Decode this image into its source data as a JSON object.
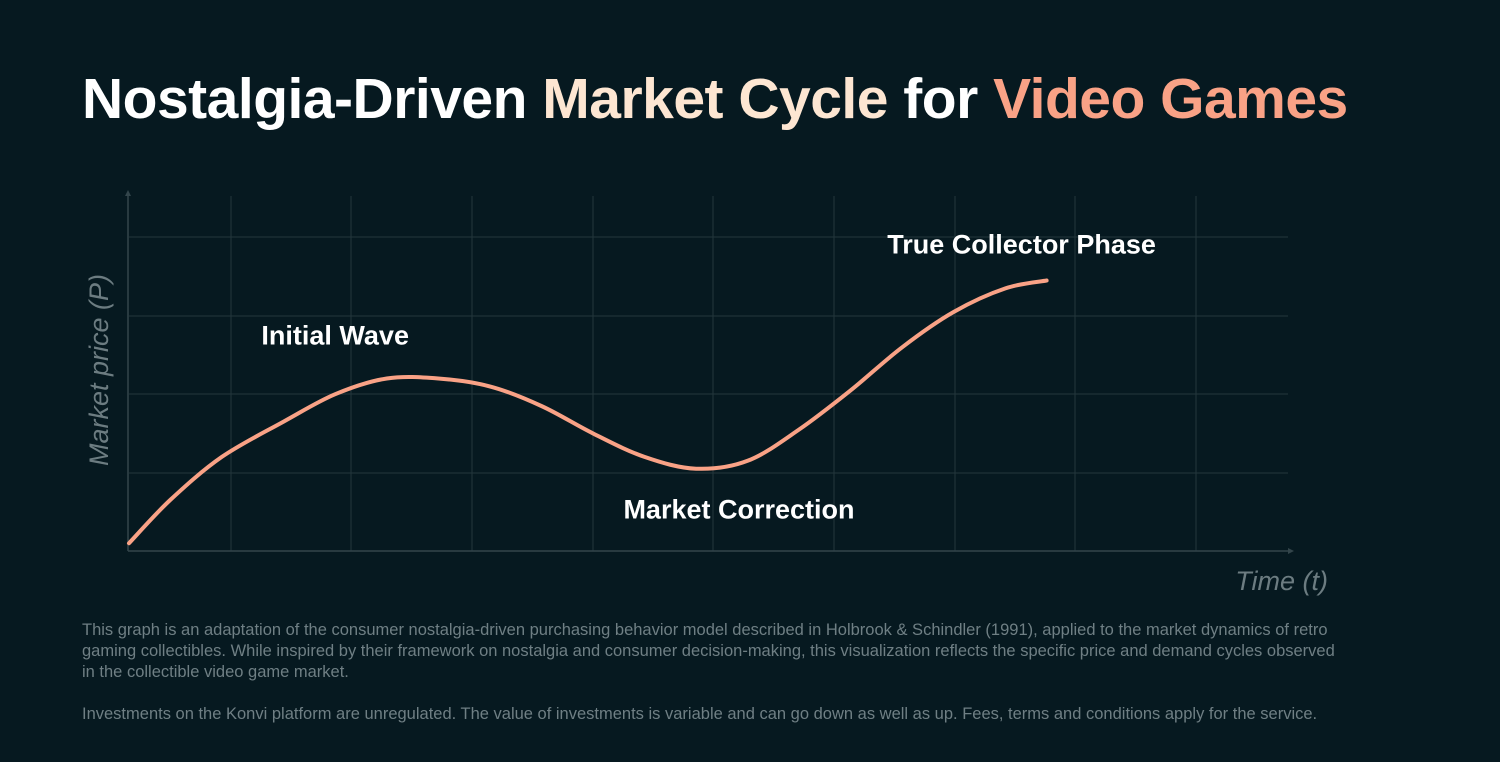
{
  "title": {
    "parts": [
      {
        "text": "Nostalgia-Driven ",
        "color": "#ffffff"
      },
      {
        "text": "Market Cycle",
        "color": "#fde6d2"
      },
      {
        "text": " for ",
        "color": "#ffffff"
      },
      {
        "text": "Video Games",
        "color": "#f9a286"
      }
    ]
  },
  "colors": {
    "background": "#061920",
    "curve": "#f9a286",
    "grid": "#24363c",
    "axis_label": "#6c7c81",
    "annotation": "#ffffff"
  },
  "chart_data": {
    "type": "line",
    "title": "Nostalgia-Driven Market Cycle for Video Games",
    "xlabel": "Time (t)",
    "ylabel": "Market price (P)",
    "xlim": [
      0,
      1
    ],
    "ylim": [
      0,
      1
    ],
    "tick_labels_shown": false,
    "grid": true,
    "legend": "none",
    "series": [
      {
        "x": [
          0.0,
          0.04,
          0.09,
          0.15,
          0.2,
          0.25,
          0.3,
          0.35,
          0.4,
          0.45,
          0.5,
          0.55,
          0.6,
          0.65,
          0.7,
          0.75,
          0.8,
          0.85,
          0.89
        ],
        "y": [
          0.02,
          0.13,
          0.24,
          0.33,
          0.4,
          0.44,
          0.44,
          0.42,
          0.37,
          0.3,
          0.24,
          0.21,
          0.23,
          0.31,
          0.41,
          0.52,
          0.61,
          0.67,
          0.69
        ]
      }
    ],
    "annotations": [
      {
        "text": "Initial Wave",
        "x": 0.2,
        "y": 0.44
      },
      {
        "text": "Market Correction",
        "x": 0.58,
        "y": 0.21
      },
      {
        "text": "True Collector Phase",
        "x": 0.89,
        "y": 0.69
      }
    ]
  },
  "footnotes": [
    "This graph is an adaptation of the consumer nostalgia-driven purchasing behavior model described in Holbrook & Schindler (1991), applied to the market dynamics of retro gaming collectibles. While inspired by their framework on nostalgia and consumer decision-making, this visualization reflects the specific price and demand cycles observed in the collectible video game market.",
    "Investments on the Konvi platform are unregulated. The value of investments is variable and can go down as well as up. Fees, terms and conditions apply for the service."
  ]
}
